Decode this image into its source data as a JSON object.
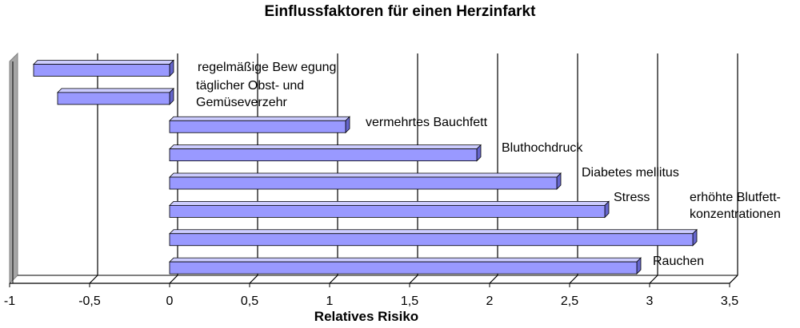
{
  "chart_data": {
    "type": "bar",
    "orientation": "horizontal",
    "title": "Einflussfaktoren für einen Herzinfarkt",
    "xlabel": "Relatives Risiko",
    "ylabel": "",
    "xlim": [
      -1,
      3.5
    ],
    "xticks": [
      "-1",
      "-0,5",
      "0",
      "0,5",
      "1",
      "1,5",
      "2",
      "2,5",
      "3",
      "3,5"
    ],
    "grid": true,
    "legend": "none",
    "bar_color": "#9999ff",
    "bar_edge_color": "#000080",
    "categories": [
      "regelmäßige Bew egung",
      "täglicher Obst- und Gemüseverzehr",
      "vermehrtes Bauchfett",
      "Bluthochdruck",
      "Diabetes mellitus",
      "Stress",
      "erhöhte Blutfett- konzentrationen",
      "Rauchen"
    ],
    "values": [
      -0.85,
      -0.7,
      1.1,
      1.92,
      2.42,
      2.72,
      3.27,
      2.92
    ]
  }
}
